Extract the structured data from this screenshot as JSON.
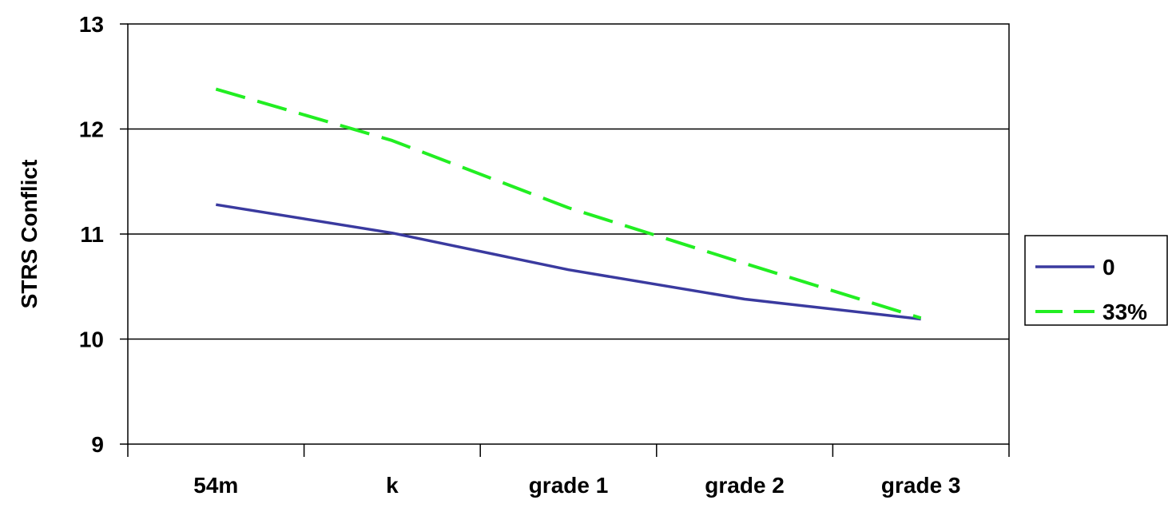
{
  "chart_data": {
    "type": "line",
    "title": "",
    "xlabel": "",
    "ylabel": "STRS Conflict",
    "categories": [
      "54m",
      "k",
      "grade 1",
      "grade 2",
      "grade 3"
    ],
    "ylim": [
      9,
      13
    ],
    "yticks": [
      9,
      10,
      11,
      12,
      13
    ],
    "grid": "horizontal",
    "legend_position": "right",
    "series": [
      {
        "name": "0",
        "values": [
          11.28,
          11.01,
          10.66,
          10.38,
          10.19
        ],
        "color": "#3a3a9f",
        "style": "solid"
      },
      {
        "name": "33%",
        "values": [
          12.38,
          11.89,
          11.25,
          10.72,
          10.2
        ],
        "color": "#22ee22",
        "style": "dashed"
      }
    ]
  }
}
